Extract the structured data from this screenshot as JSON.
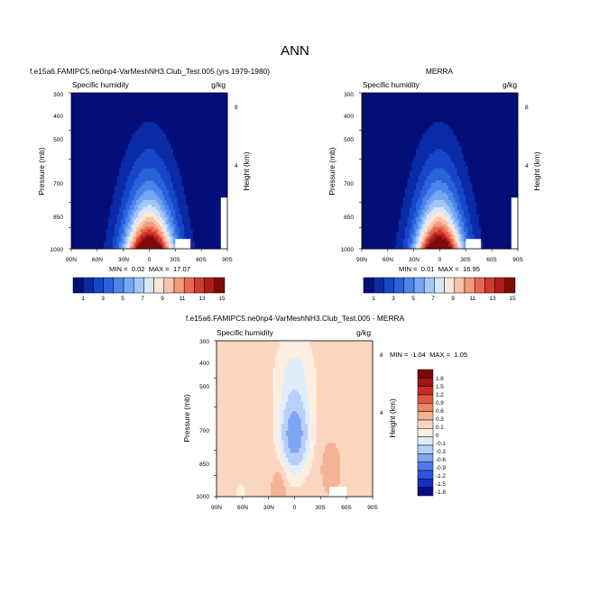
{
  "main_title": "ANN",
  "colors": {
    "seq": [
      "#040e78",
      "#0a2aa6",
      "#1747c8",
      "#2a62dc",
      "#4b84ea",
      "#75a6f2",
      "#a4c6f7",
      "#d7e7fb",
      "#fde6d6",
      "#f9c4a9",
      "#f3997c",
      "#e5694f",
      "#cf3b2c",
      "#b01c1c",
      "#7f0a0a"
    ],
    "div": [
      "#0a0c82",
      "#1a2fbf",
      "#2f55df",
      "#4f78ec",
      "#7ea4f4",
      "#b7d1f9",
      "#e0edfc",
      "#fdeee2",
      "#fbd6be",
      "#f6b294",
      "#ef8466",
      "#df5740",
      "#c52d22",
      "#a4121a",
      "#7e0406"
    ]
  },
  "chart_data": [
    {
      "id": "model",
      "type": "heatmap",
      "title": "f.e15a6.FAMIPC5.ne0np4-VarMeshNH3.Club_Test.005 (yrs 1979-1980)",
      "variable": "Specific humidity",
      "units": "g/kg",
      "xlabel": "",
      "ylabel": "Pressure (mb)",
      "ylabel_right": "Height (km)",
      "x_ticks": [
        "90N",
        "60N",
        "30N",
        "0",
        "30S",
        "60S",
        "90S"
      ],
      "y_ticks": [
        "300",
        "400",
        "500",
        "700",
        "850",
        "1000"
      ],
      "y_ticks_right": [
        "8",
        "4"
      ],
      "xlim": [
        90,
        -90
      ],
      "ylim": [
        1000,
        300
      ],
      "min_label": "MIN =  0.02  MAX =  17.07",
      "colorbar_labels": [
        "1",
        "3",
        "5",
        "7",
        "9",
        "11",
        "13",
        "15"
      ],
      "levels": [
        1,
        2,
        3,
        4,
        5,
        6,
        7,
        8,
        9,
        10,
        11,
        12,
        13,
        14,
        15
      ],
      "surface_peak_gkg": 17.07,
      "peak_latitude": 0
    },
    {
      "id": "obs",
      "type": "heatmap",
      "title": "MERRA",
      "variable": "Specific humidity",
      "units": "g/kg",
      "xlabel": "",
      "ylabel": "Pressure (mb)",
      "ylabel_right": "Height (km)",
      "x_ticks": [
        "90N",
        "60N",
        "30N",
        "0",
        "30S",
        "60S",
        "90S"
      ],
      "y_ticks": [
        "300",
        "400",
        "500",
        "700",
        "850",
        "1000"
      ],
      "y_ticks_right": [
        "8",
        "4"
      ],
      "xlim": [
        90,
        -90
      ],
      "ylim": [
        1000,
        300
      ],
      "min_label": "MIN =  0.01  MAX =  16.95",
      "colorbar_labels": [
        "1",
        "3",
        "5",
        "7",
        "9",
        "11",
        "13",
        "15"
      ],
      "levels": [
        1,
        2,
        3,
        4,
        5,
        6,
        7,
        8,
        9,
        10,
        11,
        12,
        13,
        14,
        15
      ],
      "surface_peak_gkg": 16.95,
      "peak_latitude": 0
    },
    {
      "id": "diff",
      "type": "heatmap",
      "title": "f.e15a6.FAMIPC5.ne0np4-VarMeshNH3.Club_Test.005 - MERRA",
      "variable": "Specific humidity",
      "units": "g/kg",
      "xlabel": "",
      "ylabel": "Pressure (mb)",
      "ylabel_right": "Height (km)",
      "x_ticks": [
        "90N",
        "60N",
        "30N",
        "0",
        "30S",
        "60S",
        "90S"
      ],
      "y_ticks": [
        "300",
        "400",
        "500",
        "700",
        "850",
        "1000"
      ],
      "y_ticks_right": [
        "8",
        "4"
      ],
      "xlim": [
        90,
        -90
      ],
      "ylim": [
        1000,
        300
      ],
      "min_label": "MIN = -1.04  MAX =  1.05",
      "colorbar_labels": [
        "1.8",
        "1.5",
        "1.2",
        "0.9",
        "0.6",
        "0.3",
        "0.1",
        "0",
        "-0.1",
        "-0.3",
        "-0.6",
        "-0.9",
        "-1.2",
        "-1.5",
        "-1.8"
      ],
      "levels": [
        -1.8,
        -1.5,
        -1.2,
        -0.9,
        -0.6,
        -0.3,
        -0.1,
        0,
        0.1,
        0.3,
        0.6,
        0.9,
        1.2,
        1.5,
        1.8
      ]
    }
  ]
}
